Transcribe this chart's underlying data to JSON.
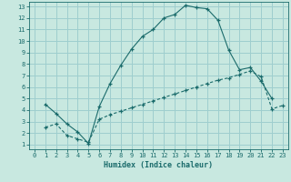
{
  "title": "",
  "xlabel": "Humidex (Indice chaleur)",
  "background_color": "#c8e8e0",
  "grid_color": "#9ecece",
  "line_color": "#1a6b6b",
  "xlim_min": -0.5,
  "xlim_max": 23.5,
  "ylim_min": 0.6,
  "ylim_max": 13.4,
  "xticks": [
    0,
    1,
    2,
    3,
    4,
    5,
    6,
    7,
    8,
    9,
    10,
    11,
    12,
    13,
    14,
    15,
    16,
    17,
    18,
    19,
    20,
    21,
    22,
    23
  ],
  "yticks": [
    1,
    2,
    3,
    4,
    5,
    6,
    7,
    8,
    9,
    10,
    11,
    12,
    13
  ],
  "line1_x": [
    1,
    2,
    3,
    4,
    5,
    6,
    7,
    8,
    9,
    10,
    11,
    12,
    13,
    14,
    15,
    16,
    17,
    18,
    19,
    20,
    21,
    22
  ],
  "line1_y": [
    4.5,
    3.7,
    2.8,
    2.1,
    1.1,
    4.3,
    6.3,
    7.9,
    9.3,
    10.4,
    11.0,
    12.0,
    12.3,
    13.1,
    12.9,
    12.8,
    11.8,
    9.2,
    7.5,
    7.7,
    6.5,
    5.0
  ],
  "line2_x": [
    1,
    2,
    3,
    4,
    5,
    6,
    7,
    8,
    9,
    10,
    11,
    12,
    13,
    14,
    15,
    16,
    17,
    18,
    19,
    20,
    21,
    22,
    23
  ],
  "line2_y": [
    2.5,
    2.8,
    1.8,
    1.5,
    1.2,
    3.2,
    3.6,
    3.9,
    4.2,
    4.5,
    4.8,
    5.1,
    5.4,
    5.7,
    6.0,
    6.3,
    6.6,
    6.8,
    7.1,
    7.4,
    6.9,
    4.1,
    4.4
  ],
  "fontsize_label": 6,
  "fontsize_tick": 5
}
